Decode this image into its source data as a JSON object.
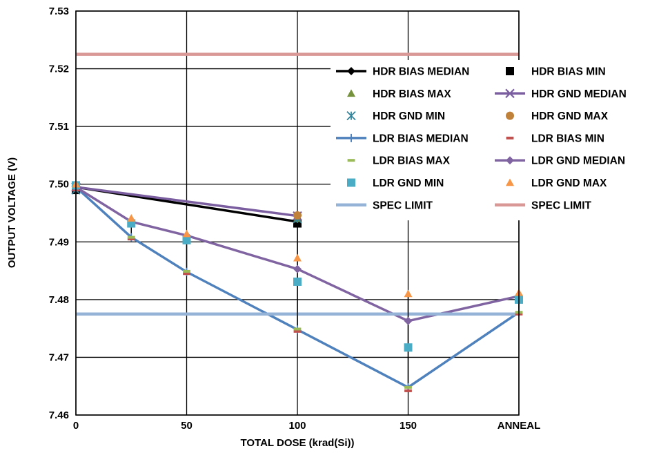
{
  "chart_data": {
    "type": "line",
    "xlabel": "TOTAL DOSE (krad(Si))",
    "ylabel": "OUTPUT VOLTAGE (V)",
    "categories": [
      "0",
      "25",
      "50",
      "100",
      "150",
      "ANNEAL"
    ],
    "x_tick_labels": [
      "0",
      "50",
      "100",
      "150",
      "ANNEAL"
    ],
    "y_ticks": [
      "7.46",
      "7.47",
      "7.48",
      "7.49",
      "7.50",
      "7.51",
      "7.52",
      "7.53"
    ],
    "ylim": [
      7.46,
      7.53
    ],
    "grid": true,
    "legend_position": "right, inside plot",
    "series": [
      {
        "name": "HDR BIAS MEDIAN",
        "marker": "diamond",
        "line": true,
        "color": "#000000",
        "points": [
          [
            0,
            7.4995
          ],
          [
            100,
            7.4935
          ]
        ]
      },
      {
        "name": "HDR BIAS MIN",
        "marker": "square",
        "line": false,
        "color": "#000000",
        "points": [
          [
            0,
            7.499
          ],
          [
            100,
            7.4932
          ]
        ]
      },
      {
        "name": "HDR BIAS MAX",
        "marker": "triangle",
        "line": false,
        "color": "#76923c",
        "points": [
          [
            0,
            7.4998
          ],
          [
            100,
            7.494
          ]
        ]
      },
      {
        "name": "HDR GND MEDIAN",
        "marker": "x",
        "line": true,
        "color": "#7a5ea0",
        "points": [
          [
            0,
            7.4995
          ],
          [
            100,
            7.4945
          ]
        ]
      },
      {
        "name": "HDR GND MIN",
        "marker": "asterisk",
        "line": false,
        "color": "#31849b",
        "points": [
          [
            0,
            7.499
          ],
          [
            100,
            7.494
          ]
        ]
      },
      {
        "name": "HDR GND MAX",
        "marker": "circle",
        "line": false,
        "color": "#c0823a",
        "points": [
          [
            0,
            7.4998
          ],
          [
            100,
            7.4946
          ]
        ]
      },
      {
        "name": "LDR BIAS MEDIAN",
        "marker": "plus",
        "line": true,
        "color": "#4f81bd",
        "points": [
          [
            0,
            7.4995
          ],
          [
            25,
            7.4908
          ],
          [
            50,
            7.4848
          ],
          [
            100,
            7.4748
          ],
          [
            150,
            7.4648
          ],
          [
            200,
            7.4778
          ]
        ]
      },
      {
        "name": "LDR BIAS MIN",
        "marker": "dash",
        "line": false,
        "color": "#c0504d",
        "points": [
          [
            0,
            7.499
          ],
          [
            25,
            7.4905
          ],
          [
            50,
            7.4845
          ],
          [
            100,
            7.4745
          ],
          [
            150,
            7.4642
          ],
          [
            200,
            7.4775
          ]
        ]
      },
      {
        "name": "LDR BIAS MAX",
        "marker": "dash",
        "line": false,
        "color": "#9bbb59",
        "points": [
          [
            0,
            7.4998
          ],
          [
            25,
            7.4908
          ],
          [
            50,
            7.4849
          ],
          [
            100,
            7.4749
          ],
          [
            150,
            7.4648
          ],
          [
            200,
            7.4778
          ]
        ]
      },
      {
        "name": "LDR GND MEDIAN",
        "marker": "diamond",
        "line": true,
        "color": "#8064a2",
        "points": [
          [
            0,
            7.4995
          ],
          [
            25,
            7.4935
          ],
          [
            50,
            7.4911
          ],
          [
            100,
            7.4853
          ],
          [
            150,
            7.4763
          ],
          [
            200,
            7.4806
          ]
        ]
      },
      {
        "name": "LDR GND MIN",
        "marker": "square",
        "line": false,
        "color": "#4bacc6",
        "points": [
          [
            0,
            7.4998
          ],
          [
            25,
            7.4932
          ],
          [
            50,
            7.4903
          ],
          [
            100,
            7.4831
          ],
          [
            150,
            7.4717
          ],
          [
            200,
            7.48
          ]
        ]
      },
      {
        "name": "LDR GND MAX",
        "marker": "triangle",
        "line": false,
        "color": "#f79646",
        "points": [
          [
            0,
            7.5
          ],
          [
            25,
            7.4941
          ],
          [
            50,
            7.4914
          ],
          [
            100,
            7.4872
          ],
          [
            150,
            7.481
          ],
          [
            200,
            7.4812
          ]
        ]
      },
      {
        "name": "SPEC LIMIT",
        "marker": "none",
        "line": true,
        "color": "#95b3d7",
        "points": [
          [
            0,
            7.4775
          ],
          [
            200,
            7.4775
          ]
        ]
      },
      {
        "name": "SPEC LIMIT",
        "marker": "none",
        "line": true,
        "color": "#d99795",
        "points": [
          [
            0,
            7.5225
          ],
          [
            200,
            7.5225
          ]
        ]
      }
    ]
  }
}
